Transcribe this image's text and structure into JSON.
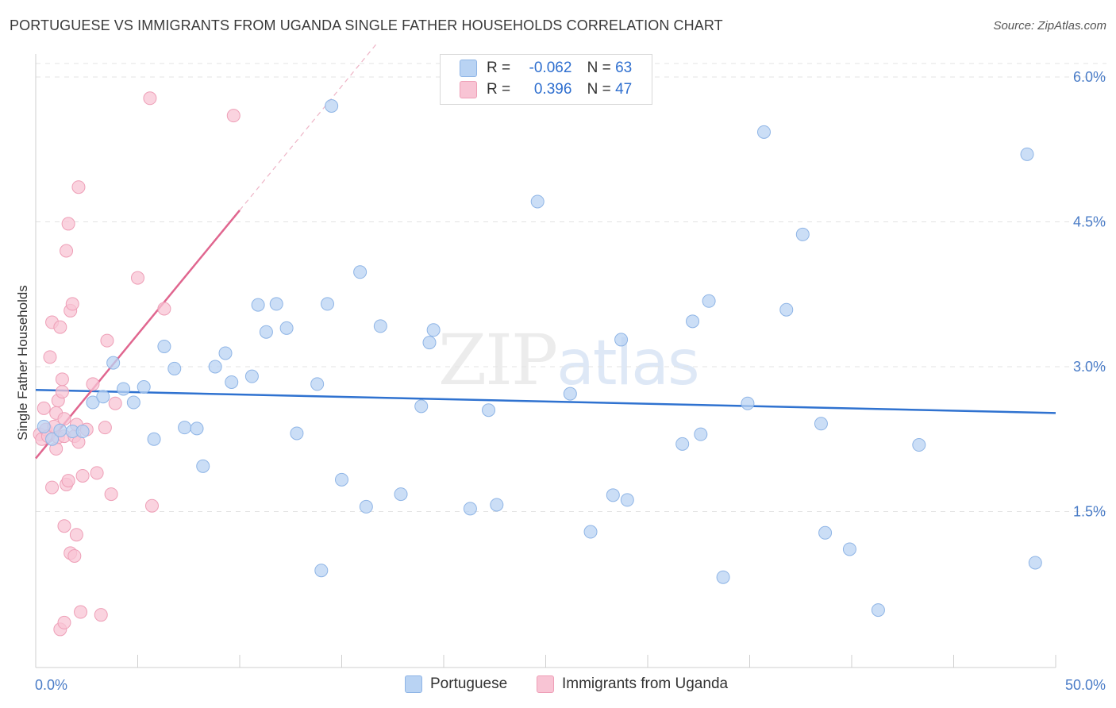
{
  "header": {
    "title": "PORTUGUESE VS IMMIGRANTS FROM UGANDA SINGLE FATHER HOUSEHOLDS CORRELATION CHART",
    "source": "Source: ZipAtlas.com"
  },
  "legend": {
    "r_label": "R =",
    "n_label": "N =",
    "series1": {
      "r": "-0.062",
      "n": "63"
    },
    "series2": {
      "r": "0.396",
      "n": "47"
    }
  },
  "bottom_legend": {
    "series1": "Portuguese",
    "series2": "Immigrants from Uganda"
  },
  "watermark": {
    "zip": "ZIP",
    "atlas": "atlas"
  },
  "colors": {
    "blue_fill": "#b9d3f3",
    "blue_stroke": "#8fb5e6",
    "blue_line": "#2f72d0",
    "pink_fill": "#f8c4d4",
    "pink_stroke": "#ee9fb7",
    "pink_line": "#e0668f",
    "grid": "#e3e3e3",
    "axis_label": "#4a7cc7"
  },
  "chart_data": {
    "type": "scatter",
    "title": "PORTUGUESE VS IMMIGRANTS FROM UGANDA SINGLE FATHER HOUSEHOLDS CORRELATION CHART",
    "xlabel": "",
    "ylabel": "Single Father Households",
    "xlim": [
      0,
      50
    ],
    "ylim": [
      0,
      6.0
    ],
    "x_tick_labels": [
      "0.0%",
      "50.0%"
    ],
    "y_ticks": [
      1.5,
      3.0,
      4.5,
      6.0
    ],
    "y_tick_labels": [
      "1.5%",
      "3.0%",
      "4.5%",
      "6.0%"
    ],
    "series": [
      {
        "name": "Portuguese",
        "r": -0.062,
        "n": 63,
        "trend": {
          "x": [
            0,
            50
          ],
          "y": [
            2.76,
            2.52
          ]
        },
        "points": [
          [
            0.8,
            2.25
          ],
          [
            1.2,
            2.34
          ],
          [
            1.8,
            2.33
          ],
          [
            2.3,
            2.33
          ],
          [
            2.8,
            2.63
          ],
          [
            3.3,
            2.69
          ],
          [
            3.8,
            3.04
          ],
          [
            4.3,
            2.77
          ],
          [
            4.8,
            2.63
          ],
          [
            5.3,
            2.79
          ],
          [
            5.8,
            2.25
          ],
          [
            6.3,
            3.21
          ],
          [
            6.8,
            2.98
          ],
          [
            7.3,
            2.37
          ],
          [
            7.9,
            2.36
          ],
          [
            8.2,
            1.97
          ],
          [
            8.8,
            3.0
          ],
          [
            9.3,
            3.14
          ],
          [
            9.6,
            2.84
          ],
          [
            10.6,
            2.9
          ],
          [
            10.9,
            3.64
          ],
          [
            11.3,
            3.36
          ],
          [
            11.8,
            3.65
          ],
          [
            12.3,
            3.4
          ],
          [
            12.8,
            2.31
          ],
          [
            13.8,
            2.82
          ],
          [
            14.0,
            0.89
          ],
          [
            14.3,
            3.65
          ],
          [
            14.5,
            5.7
          ],
          [
            15.0,
            1.83
          ],
          [
            15.9,
            3.98
          ],
          [
            16.2,
            1.55
          ],
          [
            16.9,
            3.42
          ],
          [
            17.9,
            1.68
          ],
          [
            18.9,
            2.59
          ],
          [
            19.3,
            3.25
          ],
          [
            19.5,
            3.38
          ],
          [
            21.3,
            1.53
          ],
          [
            22.2,
            2.55
          ],
          [
            22.6,
            1.57
          ],
          [
            24.6,
            4.71
          ],
          [
            26.2,
            2.72
          ],
          [
            27.2,
            1.29
          ],
          [
            28.3,
            1.67
          ],
          [
            28.7,
            3.28
          ],
          [
            29.0,
            1.62
          ],
          [
            31.7,
            2.2
          ],
          [
            32.2,
            3.47
          ],
          [
            32.6,
            2.3
          ],
          [
            33.0,
            3.68
          ],
          [
            33.7,
            0.82
          ],
          [
            34.9,
            2.62
          ],
          [
            35.7,
            5.43
          ],
          [
            36.8,
            3.59
          ],
          [
            37.6,
            4.37
          ],
          [
            38.5,
            2.41
          ],
          [
            38.7,
            1.28
          ],
          [
            39.9,
            1.11
          ],
          [
            41.3,
            0.48
          ],
          [
            43.3,
            2.19
          ],
          [
            48.6,
            5.2
          ],
          [
            49.0,
            0.97
          ],
          [
            0.4,
            2.38
          ]
        ]
      },
      {
        "name": "Immigrants from Uganda",
        "r": 0.396,
        "n": 47,
        "trend": {
          "x": [
            0,
            10
          ],
          "y": [
            2.05,
            4.62
          ]
        },
        "points": [
          [
            0.2,
            2.3
          ],
          [
            0.3,
            2.25
          ],
          [
            0.4,
            2.57
          ],
          [
            0.5,
            2.35
          ],
          [
            0.6,
            2.28
          ],
          [
            0.7,
            3.1
          ],
          [
            0.8,
            3.46
          ],
          [
            0.8,
            1.75
          ],
          [
            0.9,
            2.38
          ],
          [
            1.0,
            2.15
          ],
          [
            1.0,
            2.52
          ],
          [
            1.1,
            2.65
          ],
          [
            1.1,
            2.27
          ],
          [
            1.2,
            3.41
          ],
          [
            1.3,
            2.74
          ],
          [
            1.3,
            2.87
          ],
          [
            1.4,
            2.46
          ],
          [
            1.2,
            0.28
          ],
          [
            1.4,
            0.35
          ],
          [
            1.4,
            1.35
          ],
          [
            1.5,
            4.2
          ],
          [
            1.5,
            1.78
          ],
          [
            1.6,
            1.82
          ],
          [
            1.6,
            4.48
          ],
          [
            1.7,
            1.07
          ],
          [
            1.4,
            2.28
          ],
          [
            1.7,
            3.58
          ],
          [
            1.8,
            3.65
          ],
          [
            1.9,
            1.04
          ],
          [
            1.9,
            2.28
          ],
          [
            2.0,
            1.26
          ],
          [
            2.0,
            2.4
          ],
          [
            2.1,
            2.22
          ],
          [
            2.1,
            4.86
          ],
          [
            2.2,
            0.46
          ],
          [
            2.3,
            1.87
          ],
          [
            2.8,
            2.82
          ],
          [
            2.5,
            2.35
          ],
          [
            3.0,
            1.9
          ],
          [
            3.2,
            0.43
          ],
          [
            3.5,
            3.27
          ],
          [
            3.4,
            2.37
          ],
          [
            3.7,
            1.68
          ],
          [
            3.9,
            2.62
          ],
          [
            5.0,
            3.92
          ],
          [
            5.6,
            5.78
          ],
          [
            6.3,
            3.6
          ]
        ]
      }
    ],
    "extra_pink_points": [
      [
        5.7,
        1.56
      ],
      [
        9.7,
        5.6
      ]
    ]
  }
}
